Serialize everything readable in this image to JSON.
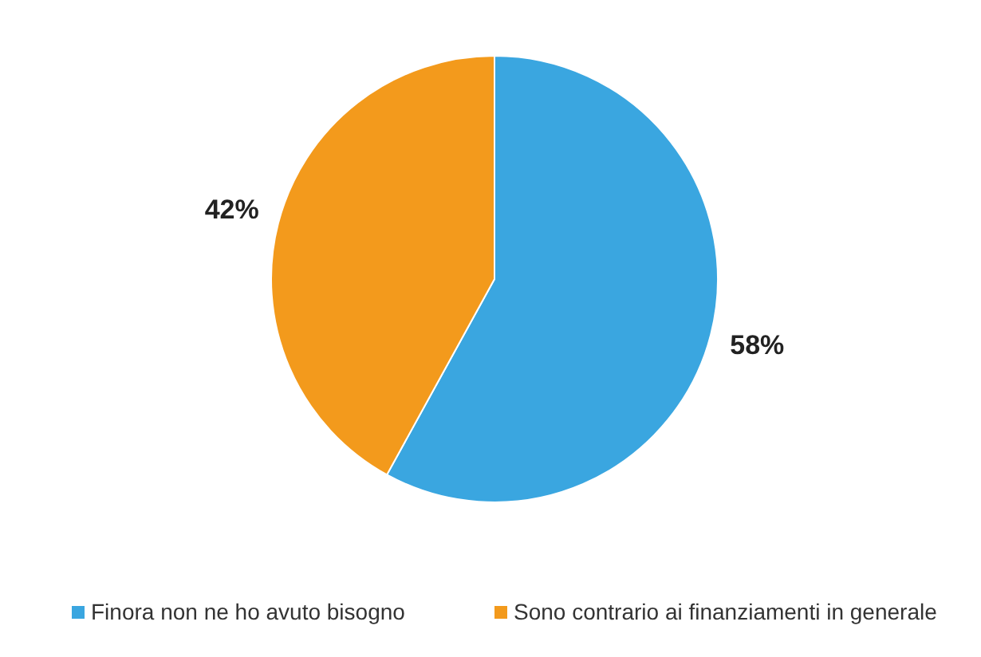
{
  "chart_data": {
    "type": "pie",
    "categories": [
      "Finora non ne ho avuto bisogno",
      "Sono contrario ai finanziamenti in generale"
    ],
    "values": [
      58,
      42
    ],
    "colors": [
      "#3aa6e0",
      "#f39a1c"
    ],
    "value_labels": [
      "58%",
      "42%"
    ],
    "legend": "bottom"
  }
}
